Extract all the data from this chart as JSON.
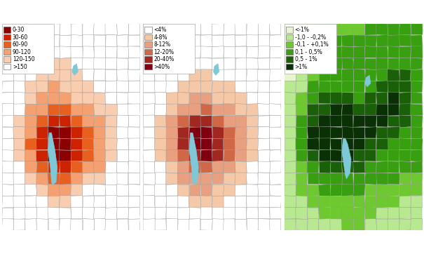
{
  "map1_legend": {
    "labels": [
      "0-30",
      "30-60",
      "60-90",
      "90-120",
      "120-150",
      ">150"
    ],
    "colors": [
      "#8B0000",
      "#CC2200",
      "#E86020",
      "#F4A070",
      "#F9CDB0",
      "#FFFFFF"
    ]
  },
  "map2_legend": {
    "labels": [
      "<4%",
      "4-8%",
      "8-12%",
      "12-20%",
      "20-40%",
      ">40%"
    ],
    "colors": [
      "#FFFFFF",
      "#F5C8A8",
      "#E8A080",
      "#D06848",
      "#A02820",
      "#800010"
    ]
  },
  "map3_legend": {
    "labels": [
      "<-1%",
      "-1,0 - -0,2%",
      "-0,1 - +0,1%",
      "0,1 - 0,5%",
      "0,5 - 1%",
      ">1%"
    ],
    "colors": [
      "#E8F5D0",
      "#B8E890",
      "#6EC830",
      "#38A010",
      "#1A6008",
      "#0A3005"
    ]
  },
  "water_color": "#7EC8D8",
  "border_color": "#999999",
  "map1_grid": [
    [
      5,
      5,
      5,
      5,
      5,
      5,
      5,
      5,
      5,
      5,
      5,
      5
    ],
    [
      5,
      5,
      5,
      5,
      5,
      5,
      5,
      5,
      5,
      5,
      5,
      5
    ],
    [
      5,
      5,
      5,
      5,
      5,
      5,
      5,
      5,
      5,
      5,
      5,
      5
    ],
    [
      5,
      5,
      5,
      5,
      4,
      4,
      5,
      5,
      5,
      5,
      5,
      5
    ],
    [
      5,
      5,
      5,
      4,
      4,
      4,
      4,
      5,
      5,
      5,
      5,
      5
    ],
    [
      5,
      5,
      4,
      4,
      3,
      4,
      4,
      4,
      5,
      5,
      5,
      5
    ],
    [
      5,
      5,
      4,
      3,
      3,
      3,
      4,
      4,
      4,
      5,
      5,
      5
    ],
    [
      5,
      5,
      3,
      3,
      2,
      2,
      3,
      3,
      4,
      4,
      5,
      5
    ],
    [
      5,
      4,
      3,
      2,
      1,
      1,
      2,
      3,
      3,
      4,
      5,
      5
    ],
    [
      5,
      4,
      3,
      1,
      0,
      0,
      1,
      2,
      3,
      4,
      5,
      5
    ],
    [
      5,
      4,
      2,
      1,
      0,
      0,
      1,
      2,
      3,
      4,
      5,
      5
    ],
    [
      5,
      4,
      3,
      1,
      0,
      0,
      1,
      2,
      3,
      4,
      5,
      5
    ],
    [
      5,
      5,
      3,
      2,
      1,
      1,
      2,
      3,
      3,
      5,
      5,
      5
    ],
    [
      5,
      5,
      4,
      3,
      2,
      2,
      3,
      4,
      4,
      5,
      5,
      5
    ],
    [
      5,
      5,
      5,
      4,
      3,
      3,
      4,
      5,
      5,
      5,
      5,
      5
    ],
    [
      5,
      5,
      5,
      5,
      4,
      4,
      5,
      5,
      5,
      5,
      5,
      5
    ],
    [
      5,
      5,
      5,
      5,
      5,
      5,
      5,
      5,
      5,
      5,
      5,
      5
    ],
    [
      5,
      5,
      5,
      5,
      5,
      5,
      5,
      5,
      5,
      5,
      5,
      5
    ]
  ],
  "map2_grid": [
    [
      0,
      0,
      0,
      0,
      0,
      0,
      0,
      0,
      0,
      0,
      0,
      0
    ],
    [
      0,
      0,
      0,
      0,
      0,
      0,
      0,
      0,
      0,
      0,
      0,
      0
    ],
    [
      0,
      0,
      0,
      0,
      0,
      0,
      0,
      0,
      0,
      0,
      0,
      0
    ],
    [
      0,
      0,
      0,
      0,
      0,
      0,
      0,
      0,
      0,
      0,
      0,
      0
    ],
    [
      0,
      0,
      0,
      0,
      1,
      1,
      0,
      0,
      0,
      0,
      0,
      0
    ],
    [
      0,
      0,
      0,
      1,
      1,
      1,
      1,
      1,
      0,
      0,
      0,
      0
    ],
    [
      0,
      0,
      1,
      1,
      2,
      2,
      1,
      1,
      1,
      0,
      0,
      0
    ],
    [
      0,
      0,
      1,
      2,
      2,
      3,
      2,
      2,
      1,
      1,
      0,
      0
    ],
    [
      0,
      1,
      2,
      3,
      4,
      4,
      3,
      2,
      2,
      1,
      0,
      0
    ],
    [
      0,
      1,
      2,
      4,
      5,
      5,
      4,
      3,
      2,
      1,
      0,
      0
    ],
    [
      0,
      1,
      2,
      4,
      5,
      5,
      4,
      3,
      2,
      1,
      0,
      0
    ],
    [
      0,
      1,
      2,
      3,
      4,
      5,
      4,
      3,
      2,
      1,
      0,
      0
    ],
    [
      0,
      0,
      1,
      2,
      3,
      3,
      2,
      2,
      1,
      0,
      0,
      0
    ],
    [
      0,
      0,
      1,
      2,
      2,
      2,
      2,
      1,
      1,
      0,
      0,
      0
    ],
    [
      0,
      0,
      0,
      1,
      2,
      2,
      1,
      1,
      0,
      0,
      0,
      0
    ],
    [
      0,
      0,
      0,
      0,
      1,
      1,
      1,
      0,
      0,
      0,
      0,
      0
    ],
    [
      0,
      0,
      0,
      0,
      0,
      0,
      0,
      0,
      0,
      0,
      0,
      0
    ],
    [
      0,
      0,
      0,
      0,
      0,
      0,
      0,
      0,
      0,
      0,
      0,
      0
    ]
  ],
  "map3_grid": [
    [
      1,
      1,
      1,
      2,
      2,
      2,
      2,
      3,
      3,
      3,
      3,
      3
    ],
    [
      1,
      1,
      2,
      2,
      3,
      3,
      3,
      3,
      3,
      3,
      3,
      3
    ],
    [
      0,
      1,
      2,
      2,
      3,
      3,
      3,
      3,
      3,
      3,
      3,
      3
    ],
    [
      0,
      1,
      2,
      3,
      3,
      3,
      3,
      3,
      3,
      3,
      3,
      3
    ],
    [
      0,
      1,
      2,
      3,
      3,
      3,
      3,
      3,
      3,
      4,
      4,
      3
    ],
    [
      1,
      1,
      3,
      3,
      3,
      3,
      3,
      3,
      4,
      4,
      4,
      3
    ],
    [
      1,
      2,
      3,
      4,
      4,
      4,
      3,
      4,
      4,
      5,
      4,
      3
    ],
    [
      1,
      2,
      4,
      4,
      5,
      5,
      4,
      4,
      5,
      5,
      4,
      3
    ],
    [
      1,
      3,
      4,
      5,
      5,
      5,
      5,
      5,
      5,
      4,
      4,
      3
    ],
    [
      1,
      3,
      5,
      5,
      5,
      5,
      5,
      5,
      4,
      4,
      3,
      3
    ],
    [
      1,
      3,
      5,
      5,
      5,
      5,
      5,
      4,
      4,
      3,
      3,
      3
    ],
    [
      1,
      3,
      4,
      5,
      5,
      5,
      4,
      4,
      3,
      3,
      3,
      3
    ],
    [
      1,
      2,
      3,
      4,
      4,
      4,
      4,
      3,
      3,
      3,
      3,
      3
    ],
    [
      1,
      2,
      3,
      3,
      3,
      3,
      3,
      3,
      3,
      3,
      2,
      2
    ],
    [
      1,
      2,
      2,
      3,
      3,
      3,
      3,
      2,
      2,
      2,
      2,
      2
    ],
    [
      1,
      1,
      2,
      2,
      2,
      2,
      2,
      2,
      2,
      2,
      1,
      1
    ],
    [
      1,
      1,
      1,
      2,
      2,
      2,
      2,
      2,
      1,
      1,
      1,
      1
    ],
    [
      1,
      1,
      1,
      1,
      1,
      2,
      2,
      1,
      1,
      1,
      1,
      1
    ]
  ]
}
